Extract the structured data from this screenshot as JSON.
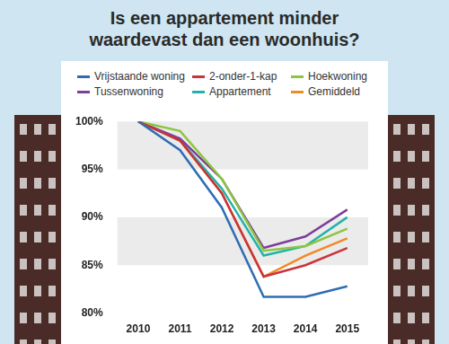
{
  "chart_data": {
    "type": "line",
    "title": "Is een appartement minder waardevast dan een woonhuis?",
    "categories": [
      "2010",
      "2011",
      "2012",
      "2013",
      "2014",
      "2015"
    ],
    "series": [
      {
        "name": "Vrijstaande woning",
        "color": "#2e6db4",
        "values": [
          100,
          97,
          91,
          81.7,
          81.7,
          82.8
        ]
      },
      {
        "name": "2-onder-1-kap",
        "color": "#c8343a",
        "values": [
          100,
          98,
          92.5,
          83.8,
          85,
          86.8
        ]
      },
      {
        "name": "Hoekwoning",
        "color": "#8cc63f",
        "values": [
          100,
          99,
          94,
          86.5,
          87,
          88.8
        ]
      },
      {
        "name": "Tussenwoning",
        "color": "#7d3f98",
        "values": [
          100,
          98.2,
          94,
          86.8,
          88,
          90.8
        ]
      },
      {
        "name": "Appartement",
        "color": "#22b2a8",
        "values": [
          100,
          98,
          93,
          86,
          87,
          90
        ]
      },
      {
        "name": "Gemiddeld",
        "color": "#f08a24",
        "values": [
          100,
          98,
          92.5,
          83.8,
          86,
          87.8
        ]
      }
    ],
    "ylim": [
      80,
      100
    ],
    "yticks": [
      {
        "value": 80,
        "label": "80%"
      },
      {
        "value": 85,
        "label": "85%"
      },
      {
        "value": 90,
        "label": "90%"
      },
      {
        "value": 95,
        "label": "95%"
      },
      {
        "value": 100,
        "label": "100%"
      }
    ],
    "grid": true,
    "legend": "top"
  }
}
